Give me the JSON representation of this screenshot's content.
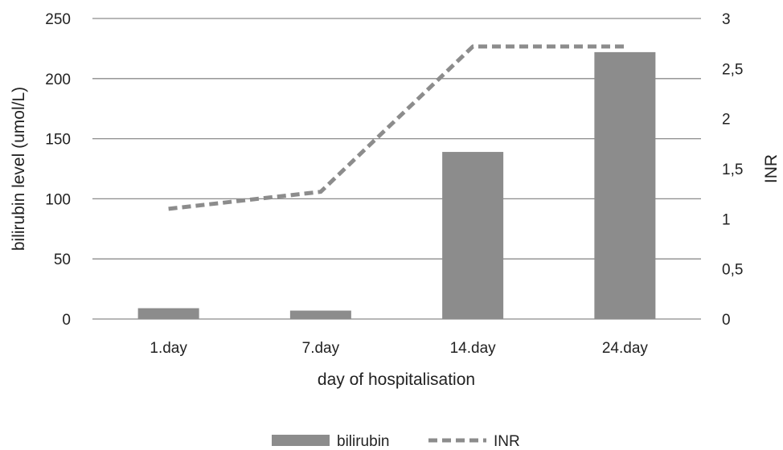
{
  "chart_data": {
    "type": "bar",
    "categories": [
      "1.day",
      "7.day",
      "14.day",
      "24.day"
    ],
    "series": [
      {
        "name": "bilirubin",
        "type": "bar",
        "axis": "left",
        "values": [
          9,
          7,
          139,
          222
        ]
      },
      {
        "name": "INR",
        "type": "line",
        "style": "dashed",
        "axis": "right",
        "values": [
          1.1,
          1.27,
          2.72,
          2.72
        ]
      }
    ],
    "title": "",
    "xlabel": "day of hospitalisation",
    "ylabel": "bilirubin level (umol/L)",
    "y2label": "INR",
    "ylim": [
      0,
      250
    ],
    "y2lim": [
      0,
      3
    ],
    "yticks": [
      "0",
      "50",
      "100",
      "150",
      "200",
      "250"
    ],
    "y2ticks": [
      "0",
      "0,5",
      "1",
      "1,5",
      "2",
      "2,5",
      "3"
    ],
    "grid": true,
    "legend": "bottom"
  },
  "colors": {
    "bar": "#8c8c8c",
    "line": "#8c8c8c",
    "grid": "#8c8c8c",
    "text": "#222222"
  }
}
